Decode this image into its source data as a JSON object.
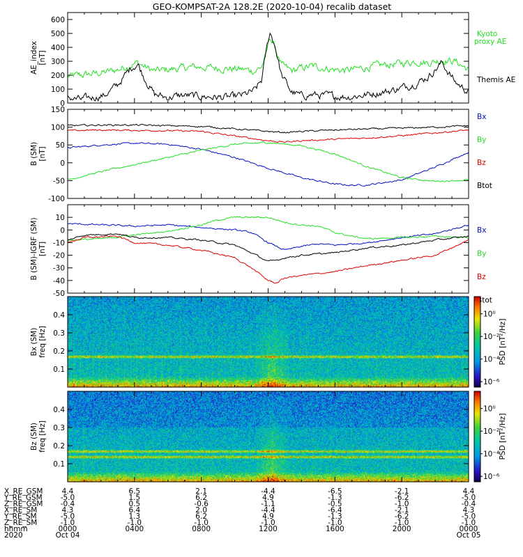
{
  "title": "GEO-KOMPSAT-2A 128.2E (2020-10-04) recalib dataset",
  "colors": {
    "black": "#000000",
    "red": "#e00000",
    "green": "#20e020",
    "blue": "#0010c0"
  },
  "chart_data": [
    {
      "id": "ae",
      "type": "line",
      "ylabel": "AE_index",
      "yunit": "[nT]",
      "ylim": [
        0,
        650
      ],
      "yticks": [
        0,
        100,
        200,
        300,
        400,
        500,
        600
      ],
      "series": [
        {
          "name": "Kyoto proxy AE",
          "label_lines": [
            "Kyoto",
            "proxy AE"
          ],
          "color": "#20e020",
          "x": [
            0,
            0.8,
            1.5,
            2.2,
            3.0,
            3.8,
            4.2,
            4.6,
            5.2,
            6.0,
            6.8,
            7.6,
            8.4,
            9.2,
            10.0,
            10.6,
            11.2,
            11.6,
            11.9,
            12.1,
            12.4,
            12.8,
            13.4,
            14.0,
            14.6,
            15.2,
            16.0,
            16.8,
            17.6,
            18.4,
            19.2,
            20.0,
            20.8,
            21.6,
            22.4,
            23.2,
            24.0
          ],
          "values": [
            190,
            200,
            210,
            220,
            240,
            275,
            290,
            260,
            230,
            240,
            250,
            260,
            255,
            250,
            245,
            240,
            230,
            260,
            350,
            480,
            400,
            270,
            230,
            250,
            265,
            255,
            240,
            235,
            250,
            265,
            275,
            285,
            300,
            290,
            310,
            300,
            240
          ]
        },
        {
          "name": "Themis AE",
          "label_lines": [
            "Themis AE"
          ],
          "color": "#000000",
          "x": [
            0,
            0.8,
            1.5,
            2.2,
            3.0,
            3.8,
            4.2,
            4.6,
            5.2,
            6.0,
            6.8,
            7.6,
            8.4,
            9.2,
            10.0,
            10.6,
            11.2,
            11.6,
            11.9,
            12.1,
            12.4,
            12.8,
            13.4,
            14.0,
            14.6,
            15.2,
            16.0,
            16.8,
            17.6,
            18.4,
            19.2,
            20.0,
            20.8,
            21.6,
            22.4,
            23.2,
            24.0
          ],
          "values": [
            40,
            25,
            40,
            55,
            130,
            255,
            280,
            180,
            60,
            40,
            55,
            50,
            45,
            40,
            45,
            60,
            90,
            160,
            380,
            510,
            420,
            200,
            80,
            50,
            60,
            55,
            50,
            45,
            55,
            70,
            85,
            110,
            140,
            190,
            290,
            150,
            80
          ]
        }
      ]
    },
    {
      "id": "bsm",
      "type": "line",
      "ylabel": "B (SM)",
      "yunit": "[nT]",
      "ylim": [
        -100,
        150
      ],
      "yticks": [
        -100,
        -50,
        0,
        50,
        100,
        150
      ],
      "series": [
        {
          "name": "Bx",
          "color": "#0010c0",
          "x": [
            0,
            2,
            4,
            6,
            8,
            10,
            12,
            14,
            16,
            17,
            18,
            20,
            22,
            24
          ],
          "values": [
            42,
            50,
            55,
            52,
            38,
            15,
            -15,
            -42,
            -60,
            -63,
            -62,
            -48,
            -12,
            30
          ]
        },
        {
          "name": "By",
          "color": "#20e020",
          "x": [
            0,
            2,
            4,
            6,
            8,
            10,
            12,
            14,
            16,
            18,
            20,
            22,
            24
          ],
          "values": [
            -48,
            -25,
            -5,
            15,
            35,
            52,
            57,
            48,
            25,
            -12,
            -42,
            -52,
            -48
          ]
        },
        {
          "name": "Bz",
          "color": "#e00000",
          "x": [
            0,
            2,
            4,
            6,
            8,
            10,
            12,
            13,
            14,
            16,
            18,
            20,
            22,
            24
          ],
          "values": [
            90,
            92,
            91,
            90,
            88,
            75,
            62,
            58,
            62,
            66,
            70,
            76,
            84,
            92
          ]
        },
        {
          "name": "Btot",
          "color": "#000000",
          "x": [
            0,
            2,
            4,
            6,
            8,
            10,
            12,
            13,
            14,
            16,
            18,
            20,
            22,
            24
          ],
          "values": [
            104,
            106,
            106,
            104,
            102,
            95,
            88,
            85,
            88,
            92,
            95,
            97,
            100,
            104
          ]
        }
      ]
    },
    {
      "id": "bdiff",
      "type": "line",
      "ylabel": "B (SM)-IGRF (SM)",
      "yunit": "[nT]",
      "ylim": [
        -50,
        20
      ],
      "yticks": [
        -50,
        -40,
        -30,
        -20,
        -10,
        0,
        10
      ],
      "series": [
        {
          "name": "Bx",
          "color": "#0010c0",
          "x": [
            0,
            2,
            4,
            6,
            8,
            10,
            11,
            12,
            13,
            14,
            15,
            16,
            18,
            20,
            22,
            24
          ],
          "values": [
            5,
            4,
            3,
            4,
            2,
            0,
            -2,
            -10,
            -16,
            -13,
            -11,
            -12,
            -10,
            -6,
            -3,
            4
          ]
        },
        {
          "name": "By",
          "color": "#20e020",
          "x": [
            0,
            2,
            4,
            6,
            8,
            9,
            10,
            12,
            13,
            14,
            15,
            16,
            17,
            18,
            20,
            22,
            24
          ],
          "values": [
            -8,
            -7,
            -4,
            -1,
            4,
            8,
            10,
            10,
            6,
            4,
            3,
            -2,
            -5,
            -7,
            -6,
            -5,
            -6
          ]
        },
        {
          "name": "Bz",
          "color": "#e00000",
          "x": [
            0,
            1,
            3,
            4,
            6,
            8,
            10,
            11,
            12,
            12.5,
            13,
            14,
            16,
            18,
            20,
            22,
            24
          ],
          "values": [
            -10,
            -6,
            -5,
            -10,
            -12,
            -16,
            -22,
            -30,
            -40,
            -42,
            -38,
            -36,
            -33,
            -28,
            -24,
            -20,
            -8
          ]
        },
        {
          "name": "Btot",
          "color": "#000000",
          "x": [
            0,
            1,
            3,
            4,
            6,
            8,
            10,
            11,
            12,
            12.5,
            13,
            14,
            16,
            18,
            20,
            22,
            24
          ],
          "values": [
            -8,
            -4,
            -3,
            -6,
            -6,
            -8,
            -12,
            -18,
            -25,
            -24,
            -22,
            -20,
            -18,
            -14,
            -12,
            -8,
            -5
          ]
        }
      ]
    },
    {
      "id": "specbx",
      "type": "heatmap",
      "ylabel": "Bx (SM)",
      "yunit": "freq [Hz]",
      "ylim": [
        0,
        0.5
      ],
      "yticks": [
        0.1,
        0.2,
        0.3,
        0.4
      ],
      "band_hz": [
        0.17
      ],
      "colorbar_label": "PSD [nT²/Hz]",
      "colorbar_ticks": [
        "10⁰",
        "10⁻²",
        "10⁻⁴",
        "10⁻⁶"
      ]
    },
    {
      "id": "specbz",
      "type": "heatmap",
      "ylabel": "Bz (SM)",
      "yunit": "freq [Hz]",
      "ylim": [
        0,
        0.5
      ],
      "yticks": [
        0.1,
        0.2,
        0.3,
        0.4
      ],
      "band_hz": [
        0.17,
        0.14
      ],
      "colorbar_label": "PSD [nT²/Hz]",
      "colorbar_ticks": [
        "10⁰",
        "10⁻²",
        "10⁻⁴",
        "10⁻⁶"
      ]
    }
  ],
  "time_axis": {
    "xlim_hours": [
      0,
      24
    ],
    "tick_hours": [
      0,
      4,
      8,
      12,
      16,
      20,
      24
    ],
    "minor_per_major": 4
  },
  "ephemeris": {
    "rows": [
      {
        "label": "X_RE_GSM",
        "values": [
          "4.4",
          "6.5",
          "2.1",
          "-4.4",
          "-6.5",
          "-2.1",
          "4.4"
        ]
      },
      {
        "label": "Y_RE_GSM",
        "values": [
          "-5.0",
          "1.5",
          "6.2",
          "4.9",
          "-1.3",
          "-6.2",
          "-5.0"
        ]
      },
      {
        "label": "Z_RE_GSM",
        "values": [
          "-0.4",
          "0.5",
          "-0.6",
          "-1.1",
          "-0.5",
          "-1.0",
          "-0.4"
        ]
      },
      {
        "label": "X_RE_SM",
        "values": [
          "4.3",
          "6.4",
          "2.0",
          "-4.4",
          "-6.4",
          "-2.1",
          "4.3"
        ]
      },
      {
        "label": "Y_RE_SM",
        "values": [
          "-5.0",
          "1.3",
          "6.2",
          "4.9",
          "-1.3",
          "-6.2",
          "-5.0"
        ]
      },
      {
        "label": "Z_RE_SM",
        "values": [
          "-1.0",
          "-1.0",
          "-1.0",
          "-1.0",
          "-1.0",
          "-1.0",
          "-1.0"
        ]
      },
      {
        "label": "hhmm",
        "values": [
          "0000",
          "0400",
          "0800",
          "1200",
          "1600",
          "2000",
          "0000"
        ]
      },
      {
        "label": "2020",
        "values": [
          "Oct 04",
          "",
          "",
          "",
          "",
          "",
          "Oct 05"
        ]
      }
    ]
  }
}
